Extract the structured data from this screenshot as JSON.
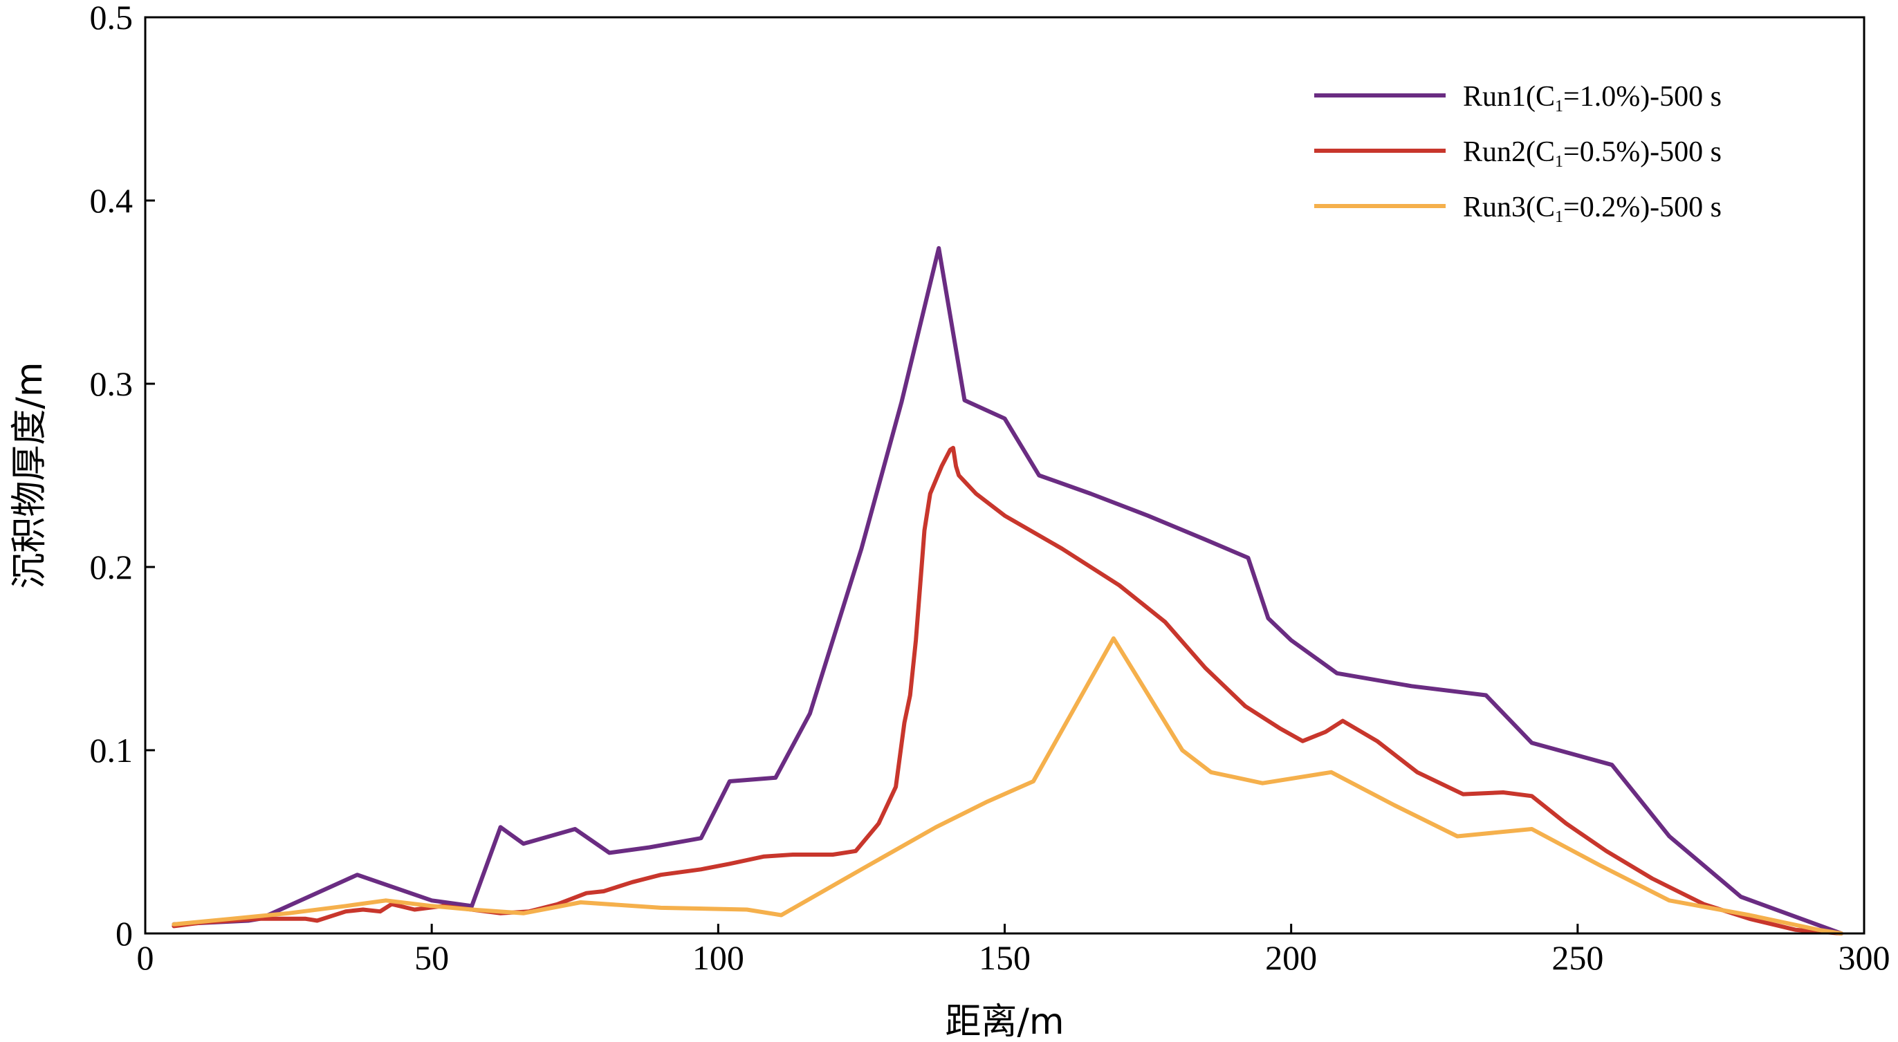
{
  "chart_data": {
    "type": "line",
    "title": "",
    "xlabel": "距离/m",
    "ylabel": "沉积物厚度/m",
    "xlim": [
      0,
      300
    ],
    "ylim": [
      0,
      0.5
    ],
    "xticks": [
      0,
      50,
      100,
      150,
      200,
      250,
      300
    ],
    "yticks": [
      0,
      0.1,
      0.2,
      0.3,
      0.4,
      0.5
    ],
    "xtick_labels": [
      "0",
      "50",
      "100",
      "150",
      "200",
      "250",
      "300"
    ],
    "ytick_labels": [
      "0",
      "0.1",
      "0.2",
      "0.3",
      "0.4",
      "0.5"
    ],
    "grid": false,
    "legend_position": "top-right",
    "series": [
      {
        "name": "Run1(C1=1.0%)-500 s",
        "legend": {
          "prefix": "Run1(C",
          "sub": "1",
          "suffix": "=1.0%)-500 s"
        },
        "color": "#6a2c82",
        "x": [
          5,
          18,
          20,
          37,
          50,
          57,
          62,
          66,
          75,
          81,
          88,
          97,
          102,
          110,
          116,
          125,
          132,
          138.5,
          143,
          150,
          156,
          165,
          175,
          185,
          192.5,
          196,
          200,
          208,
          221,
          234,
          242,
          256,
          266,
          278.5,
          296
        ],
        "y": [
          0.005,
          0.007,
          0.008,
          0.032,
          0.018,
          0.015,
          0.058,
          0.049,
          0.057,
          0.044,
          0.047,
          0.052,
          0.083,
          0.085,
          0.12,
          0.21,
          0.29,
          0.374,
          0.291,
          0.281,
          0.25,
          0.24,
          0.228,
          0.215,
          0.205,
          0.172,
          0.16,
          0.142,
          0.135,
          0.13,
          0.104,
          0.092,
          0.053,
          0.02,
          0.0
        ]
      },
      {
        "name": "Run2(C1=0.5%)-500 s",
        "legend": {
          "prefix": "Run2(C",
          "sub": "1",
          "suffix": "=0.5%)-500 s"
        },
        "color": "#c8362c",
        "x": [
          5,
          10,
          20,
          28,
          30,
          35,
          38,
          41,
          43,
          47,
          52,
          57,
          62,
          67,
          72,
          77,
          80,
          85,
          90,
          97,
          102,
          108,
          113,
          120,
          124,
          128,
          131,
          132.5,
          133.5,
          134.5,
          135.5,
          136,
          137,
          139,
          140.5,
          141,
          141.5,
          142,
          145,
          150,
          160,
          170,
          178,
          185,
          192,
          198,
          202,
          206,
          209,
          215,
          222,
          230,
          237,
          242,
          248,
          255,
          263,
          272,
          280,
          288,
          296
        ],
        "y": [
          0.004,
          0.006,
          0.008,
          0.008,
          0.007,
          0.012,
          0.013,
          0.012,
          0.016,
          0.013,
          0.015,
          0.013,
          0.011,
          0.012,
          0.016,
          0.022,
          0.023,
          0.028,
          0.032,
          0.035,
          0.038,
          0.042,
          0.043,
          0.043,
          0.045,
          0.06,
          0.08,
          0.115,
          0.13,
          0.16,
          0.2,
          0.22,
          0.24,
          0.255,
          0.264,
          0.265,
          0.255,
          0.25,
          0.24,
          0.228,
          0.21,
          0.19,
          0.17,
          0.145,
          0.124,
          0.112,
          0.105,
          0.11,
          0.116,
          0.105,
          0.088,
          0.076,
          0.077,
          0.075,
          0.06,
          0.045,
          0.03,
          0.016,
          0.008,
          0.002,
          0.0
        ]
      },
      {
        "name": "Run3(C1=0.2%)-500 s",
        "legend": {
          "prefix": "Run3(C",
          "sub": "1",
          "suffix": "=0.2%)-500 s"
        },
        "color": "#f5b04c",
        "x": [
          5,
          15,
          25,
          35,
          42,
          50,
          57,
          66,
          76,
          90,
          105,
          111,
          125,
          138,
          147,
          155,
          169,
          181,
          186,
          195,
          207,
          218,
          229,
          242,
          254,
          266,
          280,
          292,
          296
        ],
        "y": [
          0.005,
          0.008,
          0.011,
          0.015,
          0.018,
          0.015,
          0.013,
          0.011,
          0.017,
          0.014,
          0.013,
          0.01,
          0.035,
          0.058,
          0.072,
          0.083,
          0.161,
          0.1,
          0.088,
          0.082,
          0.088,
          0.07,
          0.053,
          0.057,
          0.037,
          0.018,
          0.01,
          0.002,
          0.0
        ]
      }
    ]
  }
}
